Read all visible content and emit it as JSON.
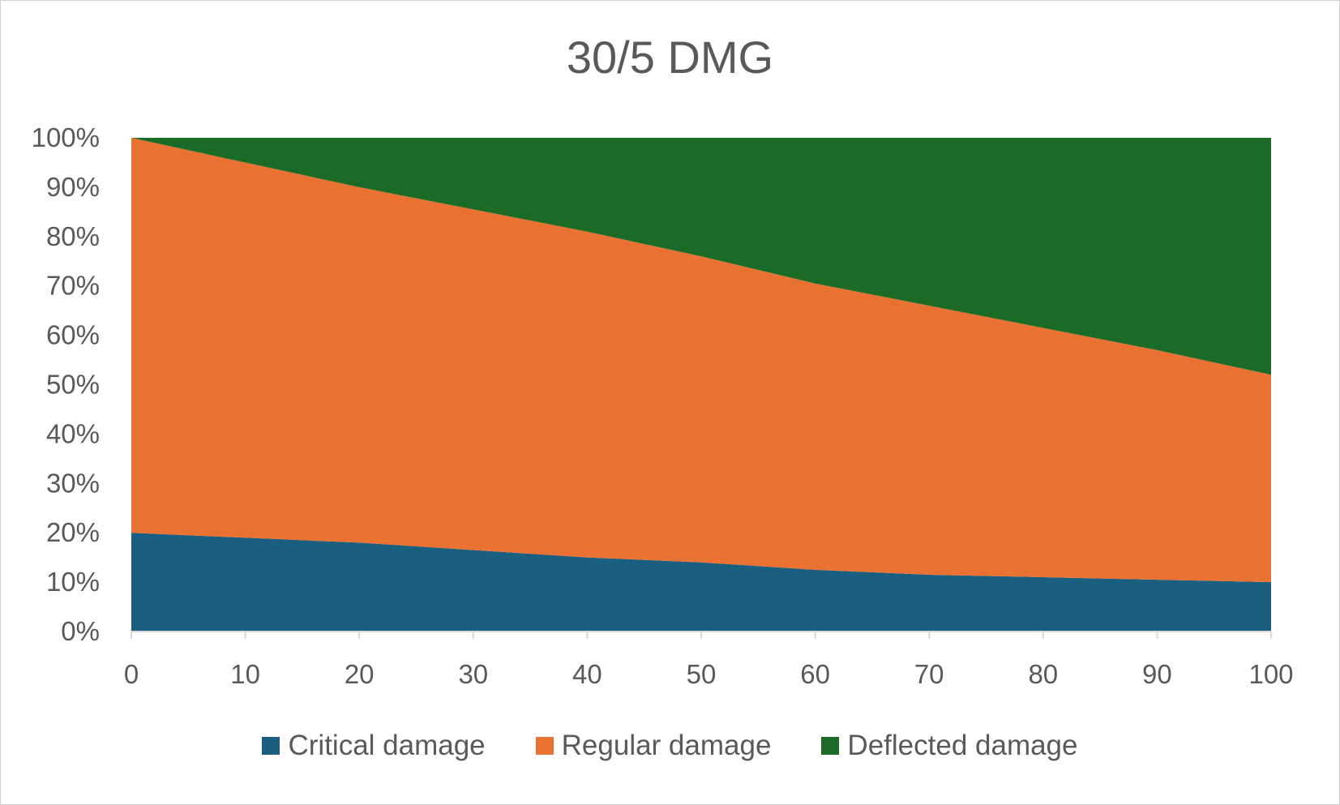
{
  "chart_data": {
    "type": "area",
    "stacked": "percent",
    "title": "30/5 DMG",
    "xlabel": "",
    "ylabel": "",
    "x": [
      0,
      10,
      20,
      30,
      40,
      50,
      60,
      70,
      80,
      90,
      100
    ],
    "x_tick_labels": [
      "0",
      "10",
      "20",
      "30",
      "40",
      "50",
      "60",
      "70",
      "80",
      "90",
      "100"
    ],
    "y_tick_labels": [
      "0%",
      "10%",
      "20%",
      "30%",
      "40%",
      "50%",
      "60%",
      "70%",
      "80%",
      "90%",
      "100%"
    ],
    "ylim": [
      0,
      100
    ],
    "xlim": [
      0,
      100
    ],
    "grid": false,
    "legend_position": "bottom",
    "series": [
      {
        "name": "Critical damage",
        "color": "#1a5e80",
        "values": [
          20,
          19,
          18,
          16.5,
          15,
          14,
          12.5,
          11.5,
          11,
          10.5,
          10
        ]
      },
      {
        "name": "Regular damage",
        "color": "#e97132",
        "values": [
          80,
          76,
          72,
          69,
          66,
          62,
          58,
          54.5,
          50.5,
          46.5,
          42
        ]
      },
      {
        "name": "Deflected damage",
        "color": "#1b6b26",
        "values": [
          0,
          5,
          10,
          14.5,
          19,
          24,
          29.5,
          34,
          38.5,
          43,
          48
        ]
      }
    ]
  }
}
